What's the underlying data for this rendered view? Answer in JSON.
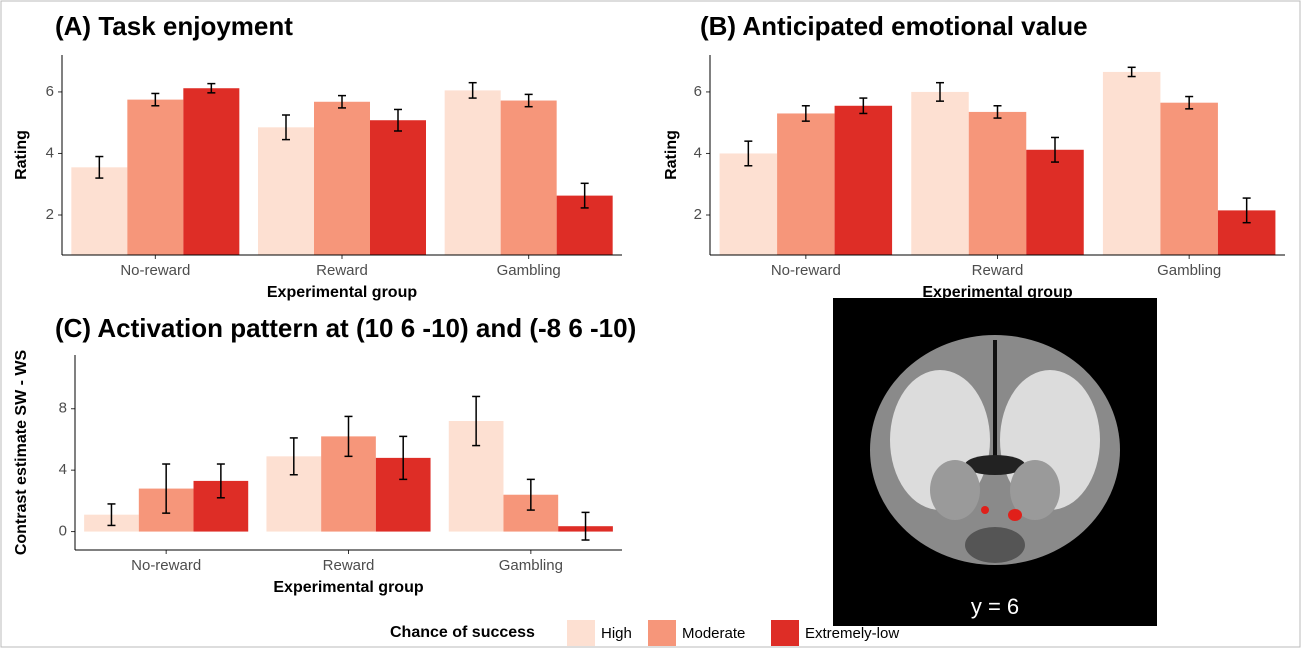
{
  "chart_data": [
    {
      "type": "bar",
      "title": "(A) Task enjoyment",
      "xlabel": "Experimental group",
      "ylabel": "Rating",
      "categories": [
        "No-reward",
        "Reward",
        "Gambling"
      ],
      "ylim": [
        0.7,
        7.2
      ],
      "yticks": [
        2,
        4,
        6
      ],
      "series": [
        {
          "name": "High",
          "color": "#fde0d2",
          "values": [
            3.55,
            4.85,
            6.05
          ],
          "errors": [
            0.35,
            0.4,
            0.25
          ]
        },
        {
          "name": "Moderate",
          "color": "#f6967a",
          "values": [
            5.75,
            5.68,
            5.72
          ],
          "errors": [
            0.2,
            0.2,
            0.2
          ]
        },
        {
          "name": "Extremely-low",
          "color": "#de2d26",
          "values": [
            6.12,
            5.08,
            2.63
          ],
          "errors": [
            0.15,
            0.35,
            0.4
          ]
        }
      ]
    },
    {
      "type": "bar",
      "title": "(B) Anticipated emotional value",
      "xlabel": "Experimental group",
      "ylabel": "Rating",
      "categories": [
        "No-reward",
        "Reward",
        "Gambling"
      ],
      "ylim": [
        0.7,
        7.2
      ],
      "yticks": [
        2,
        4,
        6
      ],
      "series": [
        {
          "color": "#fde0d2",
          "values": [
            4.0,
            6.0,
            6.65
          ],
          "errors": [
            0.4,
            0.3,
            0.15
          ]
        },
        {
          "color": "#f6967a",
          "values": [
            5.3,
            5.35,
            5.65
          ],
          "errors": [
            0.25,
            0.2,
            0.2
          ]
        },
        {
          "color": "#de2d26",
          "values": [
            5.55,
            4.12,
            2.15
          ],
          "errors": [
            0.25,
            0.4,
            0.4
          ]
        }
      ]
    },
    {
      "type": "bar",
      "title": "(C) Activation pattern at (10 6 -10) and (-8 6 -10)",
      "xlabel": "Experimental group",
      "ylabel": "Contrast estimate SW - WS",
      "categories": [
        "No-reward",
        "Reward",
        "Gambling"
      ],
      "ylim": [
        -1.2,
        11.5
      ],
      "yticks": [
        0,
        4,
        8
      ],
      "series": [
        {
          "color": "#fde0d2",
          "values": [
            1.1,
            4.9,
            7.2
          ],
          "errors": [
            0.7,
            1.2,
            1.6
          ]
        },
        {
          "color": "#f6967a",
          "values": [
            2.8,
            6.2,
            2.4
          ],
          "errors": [
            1.6,
            1.3,
            1.0
          ]
        },
        {
          "color": "#de2d26",
          "values": [
            3.3,
            4.8,
            0.35
          ],
          "errors": [
            1.1,
            1.4,
            0.9
          ]
        }
      ]
    }
  ],
  "legend": {
    "title": "Chance of success",
    "position": "bottom"
  },
  "image": {
    "label": "y = 6"
  }
}
